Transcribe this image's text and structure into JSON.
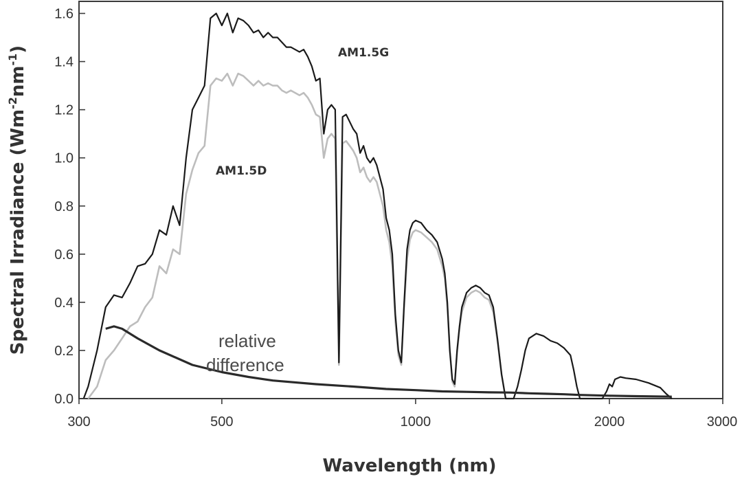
{
  "chart_data": {
    "type": "line",
    "title": "",
    "xlabel": "Wavelength (nm)",
    "ylabel_main": "Spectral Irradiance (Wm",
    "ylabel_sup1": "-2",
    "ylabel_mid": "nm",
    "ylabel_sup2": "-1",
    "ylabel_end": ")",
    "xscale": "log",
    "xlim": [
      300,
      3000
    ],
    "ylim": [
      0.0,
      1.65
    ],
    "x_ticks": [
      300,
      500,
      1000,
      2000,
      3000
    ],
    "x_tick_labels": [
      "300",
      "500",
      "1000",
      "2000",
      "3000"
    ],
    "y_ticks": [
      0.0,
      0.2,
      0.4,
      0.6,
      0.8,
      1.0,
      1.2,
      1.4,
      1.6
    ],
    "y_tick_labels": [
      "0.0",
      "0.2",
      "0.4",
      "0.6",
      "0.8",
      "1.0",
      "1.2",
      "1.4",
      "1.6"
    ],
    "grid": false,
    "annotations": {
      "am15g": "AM1.5G",
      "am15d": "AM1.5D",
      "relative_line1": "relative",
      "relative_line2": "difference"
    },
    "series": [
      {
        "name": "AM1.5G",
        "color": "#1a1a1a",
        "points": [
          [
            305,
            0.0
          ],
          [
            310,
            0.05
          ],
          [
            320,
            0.2
          ],
          [
            330,
            0.38
          ],
          [
            340,
            0.43
          ],
          [
            350,
            0.42
          ],
          [
            360,
            0.48
          ],
          [
            370,
            0.55
          ],
          [
            380,
            0.56
          ],
          [
            390,
            0.6
          ],
          [
            400,
            0.7
          ],
          [
            410,
            0.68
          ],
          [
            420,
            0.8
          ],
          [
            430,
            0.72
          ],
          [
            440,
            1.0
          ],
          [
            450,
            1.2
          ],
          [
            460,
            1.25
          ],
          [
            470,
            1.3
          ],
          [
            480,
            1.58
          ],
          [
            490,
            1.6
          ],
          [
            500,
            1.55
          ],
          [
            510,
            1.6
          ],
          [
            520,
            1.52
          ],
          [
            530,
            1.58
          ],
          [
            540,
            1.57
          ],
          [
            550,
            1.55
          ],
          [
            560,
            1.52
          ],
          [
            570,
            1.53
          ],
          [
            580,
            1.5
          ],
          [
            590,
            1.52
          ],
          [
            600,
            1.5
          ],
          [
            610,
            1.5
          ],
          [
            620,
            1.48
          ],
          [
            630,
            1.46
          ],
          [
            640,
            1.46
          ],
          [
            650,
            1.45
          ],
          [
            660,
            1.44
          ],
          [
            670,
            1.45
          ],
          [
            680,
            1.42
          ],
          [
            690,
            1.38
          ],
          [
            700,
            1.32
          ],
          [
            710,
            1.33
          ],
          [
            720,
            1.1
          ],
          [
            730,
            1.2
          ],
          [
            740,
            1.22
          ],
          [
            750,
            1.2
          ],
          [
            760,
            0.15
          ],
          [
            770,
            1.17
          ],
          [
            780,
            1.18
          ],
          [
            790,
            1.15
          ],
          [
            800,
            1.12
          ],
          [
            810,
            1.1
          ],
          [
            820,
            1.02
          ],
          [
            830,
            1.05
          ],
          [
            840,
            1.0
          ],
          [
            850,
            0.98
          ],
          [
            860,
            1.0
          ],
          [
            870,
            0.97
          ],
          [
            880,
            0.92
          ],
          [
            890,
            0.87
          ],
          [
            900,
            0.75
          ],
          [
            910,
            0.7
          ],
          [
            920,
            0.6
          ],
          [
            930,
            0.35
          ],
          [
            940,
            0.2
          ],
          [
            950,
            0.15
          ],
          [
            960,
            0.4
          ],
          [
            970,
            0.62
          ],
          [
            980,
            0.7
          ],
          [
            990,
            0.73
          ],
          [
            1000,
            0.74
          ],
          [
            1020,
            0.73
          ],
          [
            1040,
            0.7
          ],
          [
            1060,
            0.68
          ],
          [
            1080,
            0.65
          ],
          [
            1100,
            0.58
          ],
          [
            1110,
            0.52
          ],
          [
            1120,
            0.4
          ],
          [
            1130,
            0.2
          ],
          [
            1140,
            0.08
          ],
          [
            1150,
            0.06
          ],
          [
            1160,
            0.2
          ],
          [
            1170,
            0.3
          ],
          [
            1180,
            0.38
          ],
          [
            1200,
            0.44
          ],
          [
            1220,
            0.46
          ],
          [
            1240,
            0.47
          ],
          [
            1260,
            0.46
          ],
          [
            1280,
            0.44
          ],
          [
            1300,
            0.43
          ],
          [
            1320,
            0.38
          ],
          [
            1340,
            0.25
          ],
          [
            1360,
            0.1
          ],
          [
            1380,
            0.0
          ],
          [
            1400,
            0.0
          ],
          [
            1420,
            0.0
          ],
          [
            1440,
            0.05
          ],
          [
            1460,
            0.12
          ],
          [
            1480,
            0.2
          ],
          [
            1500,
            0.25
          ],
          [
            1540,
            0.27
          ],
          [
            1580,
            0.26
          ],
          [
            1620,
            0.24
          ],
          [
            1660,
            0.23
          ],
          [
            1700,
            0.21
          ],
          [
            1740,
            0.18
          ],
          [
            1760,
            0.12
          ],
          [
            1780,
            0.05
          ],
          [
            1800,
            0.0
          ],
          [
            1950,
            0.0
          ],
          [
            1980,
            0.03
          ],
          [
            2000,
            0.06
          ],
          [
            2020,
            0.05
          ],
          [
            2040,
            0.08
          ],
          [
            2080,
            0.09
          ],
          [
            2120,
            0.085
          ],
          [
            2200,
            0.08
          ],
          [
            2300,
            0.065
          ],
          [
            2400,
            0.045
          ],
          [
            2450,
            0.02
          ],
          [
            2500,
            0.0
          ]
        ]
      },
      {
        "name": "AM1.5D",
        "color": "#bdbdbd",
        "points": [
          [
            310,
            0.0
          ],
          [
            320,
            0.05
          ],
          [
            330,
            0.16
          ],
          [
            340,
            0.2
          ],
          [
            350,
            0.25
          ],
          [
            360,
            0.3
          ],
          [
            370,
            0.32
          ],
          [
            380,
            0.38
          ],
          [
            390,
            0.42
          ],
          [
            400,
            0.55
          ],
          [
            410,
            0.52
          ],
          [
            420,
            0.62
          ],
          [
            430,
            0.6
          ],
          [
            440,
            0.85
          ],
          [
            450,
            0.95
          ],
          [
            460,
            1.02
          ],
          [
            470,
            1.05
          ],
          [
            480,
            1.3
          ],
          [
            490,
            1.33
          ],
          [
            500,
            1.32
          ],
          [
            510,
            1.35
          ],
          [
            520,
            1.3
          ],
          [
            530,
            1.35
          ],
          [
            540,
            1.34
          ],
          [
            550,
            1.32
          ],
          [
            560,
            1.3
          ],
          [
            570,
            1.32
          ],
          [
            580,
            1.3
          ],
          [
            590,
            1.31
          ],
          [
            600,
            1.3
          ],
          [
            610,
            1.3
          ],
          [
            620,
            1.28
          ],
          [
            630,
            1.27
          ],
          [
            640,
            1.28
          ],
          [
            650,
            1.27
          ],
          [
            660,
            1.26
          ],
          [
            670,
            1.27
          ],
          [
            680,
            1.25
          ],
          [
            690,
            1.22
          ],
          [
            700,
            1.18
          ],
          [
            710,
            1.17
          ],
          [
            720,
            1.0
          ],
          [
            730,
            1.08
          ],
          [
            740,
            1.1
          ],
          [
            750,
            1.08
          ],
          [
            760,
            0.14
          ],
          [
            770,
            1.06
          ],
          [
            780,
            1.07
          ],
          [
            790,
            1.05
          ],
          [
            800,
            1.03
          ],
          [
            810,
            1.0
          ],
          [
            820,
            0.94
          ],
          [
            830,
            0.96
          ],
          [
            840,
            0.92
          ],
          [
            850,
            0.9
          ],
          [
            860,
            0.92
          ],
          [
            870,
            0.9
          ],
          [
            880,
            0.85
          ],
          [
            890,
            0.8
          ],
          [
            900,
            0.7
          ],
          [
            910,
            0.65
          ],
          [
            920,
            0.55
          ],
          [
            930,
            0.32
          ],
          [
            940,
            0.18
          ],
          [
            950,
            0.14
          ],
          [
            960,
            0.38
          ],
          [
            970,
            0.58
          ],
          [
            980,
            0.66
          ],
          [
            990,
            0.69
          ],
          [
            1000,
            0.7
          ],
          [
            1020,
            0.69
          ],
          [
            1040,
            0.67
          ],
          [
            1060,
            0.65
          ],
          [
            1080,
            0.62
          ],
          [
            1100,
            0.55
          ],
          [
            1110,
            0.5
          ],
          [
            1120,
            0.38
          ],
          [
            1130,
            0.2
          ],
          [
            1140,
            0.07
          ],
          [
            1150,
            0.05
          ],
          [
            1160,
            0.19
          ],
          [
            1170,
            0.29
          ],
          [
            1180,
            0.36
          ],
          [
            1200,
            0.42
          ],
          [
            1220,
            0.44
          ],
          [
            1240,
            0.45
          ],
          [
            1260,
            0.44
          ],
          [
            1280,
            0.42
          ],
          [
            1300,
            0.41
          ],
          [
            1320,
            0.36
          ],
          [
            1340,
            0.24
          ],
          [
            1360,
            0.1
          ],
          [
            1380,
            0.0
          ]
        ]
      },
      {
        "name": "relative difference",
        "color": "#2a2a2a",
        "points": [
          [
            330,
            0.29
          ],
          [
            340,
            0.3
          ],
          [
            350,
            0.29
          ],
          [
            370,
            0.25
          ],
          [
            400,
            0.2
          ],
          [
            450,
            0.14
          ],
          [
            500,
            0.11
          ],
          [
            550,
            0.09
          ],
          [
            600,
            0.075
          ],
          [
            700,
            0.06
          ],
          [
            800,
            0.05
          ],
          [
            900,
            0.04
          ],
          [
            1000,
            0.035
          ],
          [
            1100,
            0.03
          ],
          [
            1200,
            0.028
          ],
          [
            1300,
            0.026
          ],
          [
            1400,
            0.025
          ],
          [
            1500,
            0.022
          ],
          [
            1600,
            0.02
          ],
          [
            1700,
            0.018
          ],
          [
            1800,
            0.015
          ],
          [
            2000,
            0.012
          ],
          [
            2200,
            0.01
          ],
          [
            2500,
            0.008
          ]
        ]
      }
    ]
  }
}
